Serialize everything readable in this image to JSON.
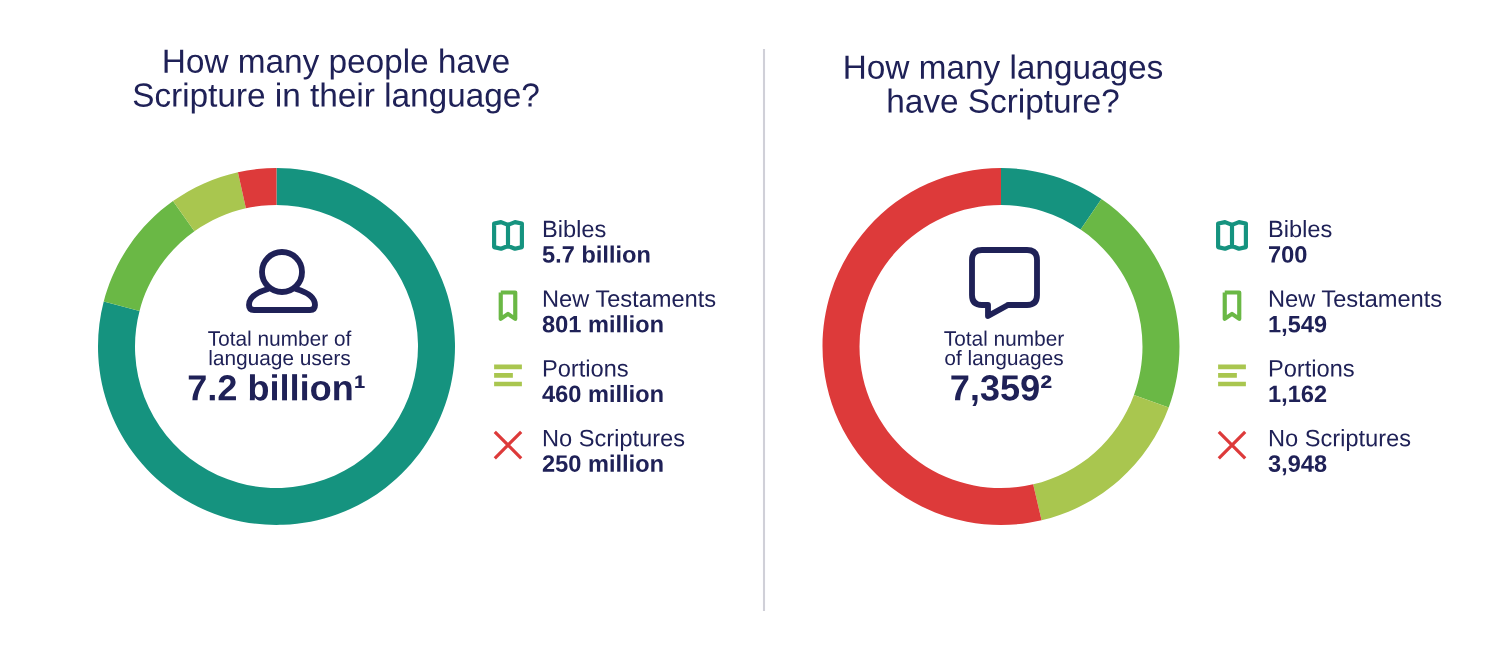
{
  "chart_data": [
    {
      "type": "donut",
      "title": "How many people have\nScripture in their language?",
      "categories": [
        "Bibles",
        "New Testaments",
        "Portions",
        "No Scriptures"
      ],
      "values": [
        5700000000,
        801000000,
        460000000,
        250000000
      ],
      "value_labels": [
        "5.7 billion",
        "801 million",
        "460 million",
        "250 million"
      ],
      "colors": [
        "#15937f",
        "#6ab845",
        "#a9c64f",
        "#dd3a3a"
      ],
      "legend": "right",
      "annotations": [
        "Total number of\nlanguage users",
        "7.2 billion¹"
      ]
    },
    {
      "type": "donut",
      "title": "How many languages\nhave Scripture?",
      "categories": [
        "Bibles",
        "New Testaments",
        "Portions",
        "No Scriptures"
      ],
      "values": [
        700,
        1549,
        1162,
        3948
      ],
      "value_labels": [
        "700",
        "1,549",
        "1,162",
        "3,948"
      ],
      "colors": [
        "#15937f",
        "#6ab845",
        "#a9c64f",
        "#dd3a3a"
      ],
      "legend": "right",
      "annotations": [
        "Total number\nof languages",
        "7,359²"
      ]
    }
  ]
}
